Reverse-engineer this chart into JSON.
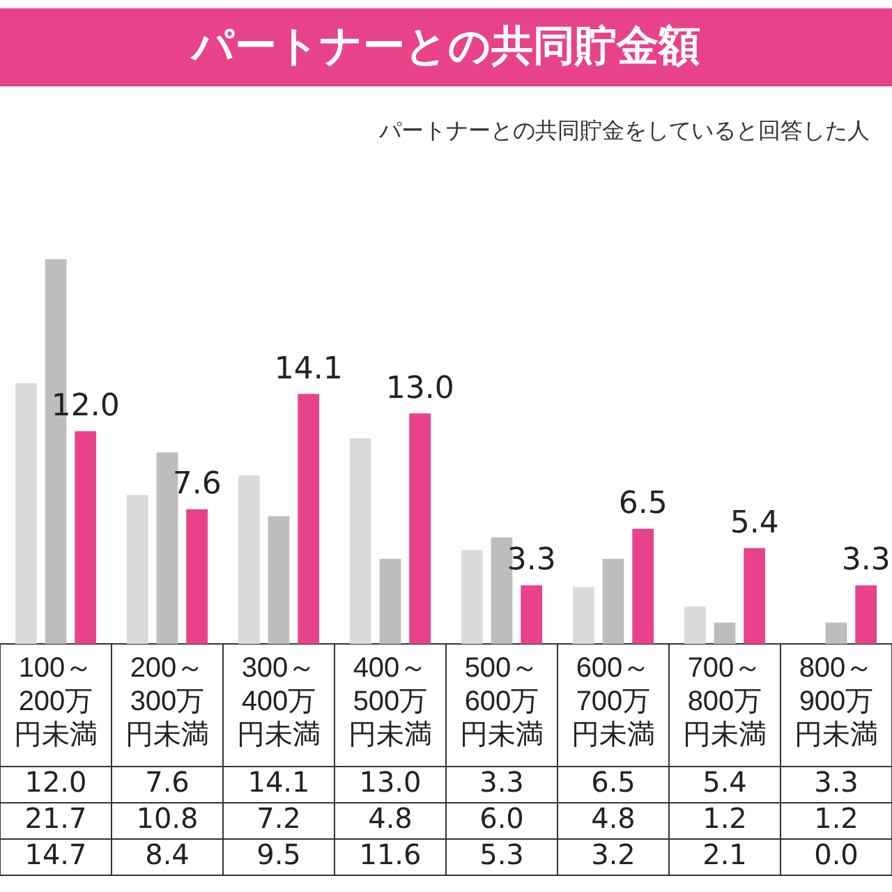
{
  "chart_data": {
    "type": "bar",
    "title": "パートナーとの共同貯金額",
    "subtitle": "パートナーとの共同貯金をしていると回答した人",
    "categories": [
      "100～200万円未満",
      "200～300万円未満",
      "300～400万円未満",
      "400～500万円未満",
      "500～600万円未満",
      "600～700万円未満",
      "700～800万円未満",
      "800～900万円未満"
    ],
    "series": [
      {
        "color": "#dadada",
        "values": [
          14.7,
          8.4,
          9.5,
          11.6,
          5.3,
          3.2,
          2.1,
          0.0
        ],
        "value_labels": [
          "14.7",
          "8.4",
          "9.5",
          "11.6",
          "5.3",
          "3.2",
          "2.1",
          "0.0"
        ]
      },
      {
        "color": "#bdbdbd",
        "values": [
          21.7,
          10.8,
          7.2,
          4.8,
          6.0,
          4.8,
          1.2,
          1.2
        ],
        "value_labels": [
          "21.7",
          "10.8",
          "7.2",
          "4.8",
          "6.0",
          "4.8",
          "1.2",
          "1.2"
        ]
      },
      {
        "color": "#e8428a",
        "values": [
          12.0,
          7.6,
          14.1,
          13.0,
          3.3,
          6.5,
          5.4,
          3.3
        ],
        "value_labels": [
          "12.0",
          "7.6",
          "14.1",
          "13.0",
          "3.3",
          "6.5",
          "5.4",
          "3.3"
        ]
      }
    ],
    "tick_labels": "x",
    "legend": false
  }
}
